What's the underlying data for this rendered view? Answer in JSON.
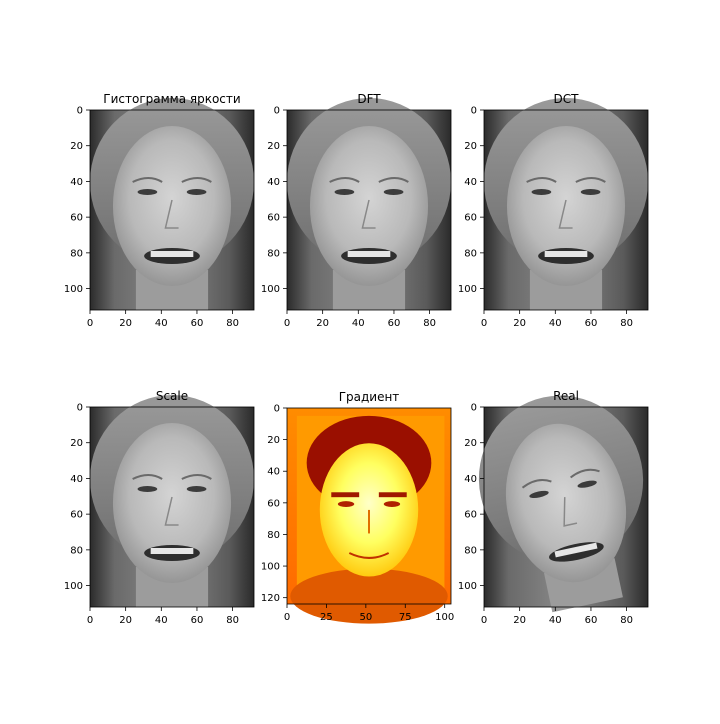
{
  "figure": {
    "background": "#ffffff"
  },
  "chart_data": [
    {
      "type": "image",
      "title": "Гистограмма яркости",
      "colormap": "gray",
      "content": "grayscale face photo",
      "xlim": [
        0,
        92
      ],
      "ylim": [
        112,
        0
      ],
      "xticks": [
        "0",
        "20",
        "40",
        "60",
        "80"
      ],
      "yticks": [
        "0",
        "20",
        "40",
        "60",
        "80",
        "100"
      ],
      "x_tick_values": [
        0,
        20,
        40,
        60,
        80
      ],
      "y_tick_values": [
        0,
        20,
        40,
        60,
        80,
        100
      ]
    },
    {
      "type": "image",
      "title": "DFT",
      "colormap": "gray",
      "content": "grayscale face photo",
      "xlim": [
        0,
        92
      ],
      "ylim": [
        112,
        0
      ],
      "xticks": [
        "0",
        "20",
        "40",
        "60",
        "80"
      ],
      "yticks": [
        "0",
        "20",
        "40",
        "60",
        "80",
        "100"
      ],
      "x_tick_values": [
        0,
        20,
        40,
        60,
        80
      ],
      "y_tick_values": [
        0,
        20,
        40,
        60,
        80,
        100
      ]
    },
    {
      "type": "image",
      "title": "DCT",
      "colormap": "gray",
      "content": "grayscale face photo",
      "xlim": [
        0,
        92
      ],
      "ylim": [
        112,
        0
      ],
      "xticks": [
        "0",
        "20",
        "40",
        "60",
        "80"
      ],
      "yticks": [
        "0",
        "20",
        "40",
        "60",
        "80",
        "100"
      ],
      "x_tick_values": [
        0,
        20,
        40,
        60,
        80
      ],
      "y_tick_values": [
        0,
        20,
        40,
        60,
        80,
        100
      ]
    },
    {
      "type": "image",
      "title": "Scale",
      "colormap": "gray",
      "content": "grayscale face photo",
      "xlim": [
        0,
        92
      ],
      "ylim": [
        112,
        0
      ],
      "xticks": [
        "0",
        "20",
        "40",
        "60",
        "80"
      ],
      "yticks": [
        "0",
        "20",
        "40",
        "60",
        "80",
        "100"
      ],
      "x_tick_values": [
        0,
        20,
        40,
        60,
        80
      ],
      "y_tick_values": [
        0,
        20,
        40,
        60,
        80,
        100
      ]
    },
    {
      "type": "image",
      "title": "Градиент",
      "colormap": "hot",
      "content": "face photo rendered with hot colormap (red, orange, yellow)",
      "xlim": [
        0,
        104
      ],
      "ylim": [
        124,
        0
      ],
      "xticks": [
        "0",
        "25",
        "50",
        "75",
        "100"
      ],
      "yticks": [
        "0",
        "20",
        "40",
        "60",
        "80",
        "100",
        "120"
      ],
      "x_tick_values": [
        0,
        25,
        50,
        75,
        100
      ],
      "y_tick_values": [
        0,
        20,
        40,
        60,
        80,
        100,
        120
      ]
    },
    {
      "type": "image",
      "title": "Real",
      "colormap": "gray",
      "content": "grayscale face photo, head tilted",
      "xlim": [
        0,
        92
      ],
      "ylim": [
        112,
        0
      ],
      "xticks": [
        "0",
        "20",
        "40",
        "60",
        "80"
      ],
      "yticks": [
        "0",
        "20",
        "40",
        "60",
        "80",
        "100"
      ],
      "x_tick_values": [
        0,
        20,
        40,
        60,
        80
      ],
      "y_tick_values": [
        0,
        20,
        40,
        60,
        80,
        100
      ]
    }
  ]
}
